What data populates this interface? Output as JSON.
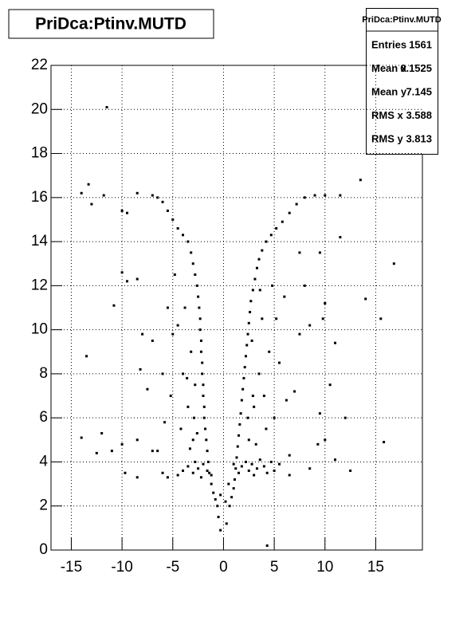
{
  "chart_data": {
    "type": "scatter",
    "title": "PriDca:Ptinv.MUTD",
    "stats": {
      "title": "PriDca:Ptinv.MUTD",
      "rows": [
        {
          "label": "Entries",
          "value": 1561
        },
        {
          "label": "Mean x",
          "value": 0.1525
        },
        {
          "label": "Mean y",
          "value": 7.145
        },
        {
          "label": "RMS x",
          "value": 3.588
        },
        {
          "label": "RMS y",
          "value": 3.813
        }
      ]
    },
    "xlim": [
      -17,
      19.6
    ],
    "ylim": [
      0,
      22
    ],
    "xticks": [
      -15,
      -10,
      -5,
      0,
      5,
      10,
      15
    ],
    "yticks": [
      0,
      2,
      4,
      6,
      8,
      10,
      12,
      14,
      16,
      18,
      20,
      22
    ],
    "grid": true,
    "color": "#000000",
    "x": [
      -0.3,
      -0.5,
      -0.6,
      -0.8,
      -1.0,
      -1.2,
      -1.4,
      -1.5,
      -1.6,
      -1.7,
      -1.8,
      -1.9,
      -1.9,
      -2.0,
      -2.0,
      -2.1,
      -2.1,
      -2.2,
      -2.2,
      -2.3,
      -2.3,
      -2.4,
      -2.5,
      -2.6,
      -2.8,
      -3.0,
      -3.2,
      -3.5,
      -4.0,
      -4.5,
      -5.0,
      -5.5,
      -6.0,
      -6.5,
      -7.0,
      -8.5,
      0.3,
      0.6,
      0.8,
      1.0,
      1.1,
      1.2,
      1.3,
      1.4,
      1.5,
      1.6,
      1.7,
      1.8,
      1.9,
      2.0,
      2.1,
      2.2,
      2.3,
      2.4,
      2.5,
      2.6,
      2.7,
      2.9,
      3.1,
      3.3,
      3.5,
      3.8,
      4.2,
      4.7,
      5.2,
      5.8,
      6.5,
      7.2,
      8.0,
      9.0,
      10.0,
      11.5,
      -4.5,
      -4.0,
      -3.5,
      -3.0,
      -2.8,
      -2.5,
      -2.2,
      -2.0,
      -1.6,
      -1.2,
      1.0,
      1.5,
      1.8,
      2.2,
      2.5,
      2.8,
      3.0,
      3.3,
      3.6,
      4.0,
      4.3,
      4.7,
      5.0,
      5.5,
      6.5,
      -5.5,
      -6.0,
      0.5,
      -0.3,
      0.2,
      -3.0,
      -3.5,
      -2.8,
      -4.0,
      -3.2,
      -4.5,
      -3.8,
      -5.0,
      -2.9,
      -3.3,
      -4.2,
      -5.2,
      -4.8,
      -5.5,
      -6.0,
      -6.5,
      -7.0,
      -5.8,
      -3.6,
      -2.6,
      2.5,
      3.0,
      3.5,
      2.8,
      4.0,
      3.8,
      4.5,
      5.0,
      5.5,
      6.0,
      4.2,
      3.2,
      6.5,
      7.0,
      7.5,
      8.0,
      5.2,
      4.8,
      6.2,
      2.4,
      3.6,
      2.9,
      -11.5,
      -14,
      -13.3,
      -13,
      -11.8,
      -10,
      -9.5,
      -10,
      -9.5,
      -8.5,
      -10.8,
      -13.5,
      -8,
      -8.2,
      -7.5,
      -14,
      -12,
      -12.5,
      -10,
      -9.7,
      -8.5,
      -8.5,
      -7,
      -11,
      13.5,
      14,
      15.5,
      16.8,
      15.8,
      12.5,
      11,
      10,
      9.5,
      10.5,
      11,
      9.8,
      10,
      9.5,
      11.5,
      7.5,
      8.5,
      4.3,
      8.5,
      9.3,
      12
    ],
    "y": [
      0.9,
      1.5,
      2.0,
      2.3,
      2.6,
      3.0,
      3.5,
      4.0,
      4.5,
      5.0,
      5.5,
      6.0,
      6.5,
      7.0,
      7.5,
      8.0,
      8.5,
      9.0,
      9.5,
      10.0,
      10.5,
      11.0,
      11.5,
      12.0,
      12.5,
      13.0,
      13.5,
      14.0,
      14.3,
      14.6,
      15.0,
      15.4,
      15.8,
      16.0,
      16.1,
      16.2,
      1.2,
      2.0,
      2.4,
      2.8,
      3.2,
      3.7,
      4.2,
      4.7,
      5.2,
      5.7,
      6.2,
      6.8,
      7.3,
      7.8,
      8.3,
      8.8,
      9.3,
      9.8,
      10.3,
      10.8,
      11.3,
      11.8,
      12.3,
      12.8,
      13.2,
      13.6,
      14.0,
      14.3,
      14.6,
      14.9,
      15.3,
      15.7,
      16.0,
      16.1,
      16.1,
      16.1,
      3.4,
      3.6,
      3.8,
      3.5,
      4.0,
      3.7,
      3.3,
      3.9,
      3.6,
      3.4,
      3.9,
      3.5,
      3.8,
      4.0,
      3.6,
      3.9,
      3.4,
      3.7,
      4.1,
      3.8,
      3.5,
      4.0,
      3.6,
      3.9,
      3.4,
      3.3,
      3.5,
      3.0,
      2.5,
      2.2,
      5.0,
      6.5,
      7.5,
      8.0,
      9.0,
      10.2,
      11.0,
      9.8,
      6.0,
      4.6,
      5.5,
      7.0,
      12.5,
      11.0,
      8.0,
      4.5,
      9.5,
      5.8,
      7.8,
      5.3,
      5.0,
      6.5,
      8.0,
      9.5,
      7.0,
      10.5,
      9.0,
      6.0,
      8.5,
      11.5,
      5.5,
      4.8,
      4.3,
      7.2,
      9.8,
      12.0,
      10.5,
      12.0,
      6.8,
      6.0,
      11.8,
      7.0,
      20.1,
      16.2,
      16.6,
      15.7,
      16.1,
      15.4,
      15.3,
      12.6,
      12.2,
      12.3,
      11.1,
      8.8,
      9.8,
      8.2,
      7.3,
      5.1,
      5.3,
      4.4,
      4.8,
      3.5,
      3.3,
      5.0,
      4.5,
      4.5,
      16.8,
      11.4,
      10.5,
      13,
      4.9,
      3.6,
      4.1,
      5.0,
      6.2,
      7.5,
      9.4,
      10.5,
      11.2,
      13.5,
      14.2,
      13.5,
      10.2,
      0.2,
      3.7,
      4.8,
      6.0
    ]
  }
}
